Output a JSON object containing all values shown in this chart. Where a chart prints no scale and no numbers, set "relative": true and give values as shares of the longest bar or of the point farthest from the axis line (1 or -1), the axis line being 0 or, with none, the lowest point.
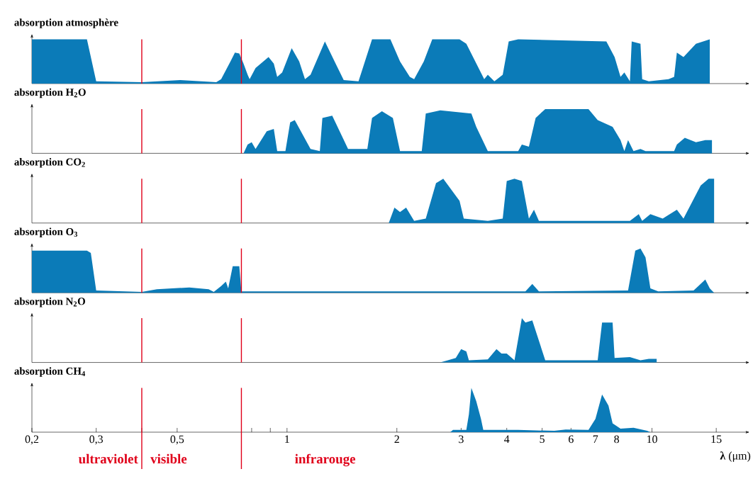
{
  "chart_data": [
    {
      "type": "area",
      "title": "absorption atmosphère",
      "log": "x",
      "xlim": [
        0.2,
        18.5
      ],
      "relative": true,
      "tick_labels": false,
      "color": "#0b7bb8",
      "x": [
        0.2,
        0.283,
        0.3,
        0.4,
        0.51,
        0.64,
        0.66,
        0.7,
        0.72,
        0.74,
        0.76,
        0.78,
        0.79,
        0.82,
        0.89,
        0.92,
        0.94,
        0.97,
        1.03,
        1.08,
        1.12,
        1.16,
        1.27,
        1.35,
        1.43,
        1.57,
        1.71,
        1.92,
        2.04,
        2.17,
        2.23,
        2.37,
        2.5,
        2.97,
        3.1,
        3.47,
        3.55,
        3.7,
        3.9,
        4.05,
        4.3,
        7.5,
        7.9,
        8.2,
        8.4,
        8.7,
        8.8,
        9.3,
        9.4,
        9.8,
        11.1,
        11.5,
        11.7,
        12.2,
        13.2,
        14.4
      ],
      "values": [
        1,
        1,
        0.05,
        0.03,
        0.08,
        0.03,
        0.1,
        0.5,
        0.7,
        0.68,
        0.45,
        0.2,
        0.1,
        0.35,
        0.6,
        0.45,
        0.15,
        0.25,
        0.8,
        0.5,
        0.1,
        0.2,
        0.95,
        0.5,
        0.08,
        0.05,
        1,
        1,
        0.5,
        0.15,
        0.1,
        0.5,
        1,
        1,
        0.9,
        0.1,
        0.2,
        0.05,
        0.2,
        0.95,
        1,
        0.95,
        0.6,
        0.15,
        0.25,
        0.05,
        0.95,
        0.9,
        0.1,
        0.05,
        0.1,
        0.15,
        0.7,
        0.6,
        0.9,
        1
      ],
      "ref_lines": [
        {
          "axis": "x",
          "value": 0.4,
          "color": "#e0001a"
        },
        {
          "axis": "x",
          "value": 0.75,
          "color": "#e0001a"
        }
      ]
    },
    {
      "type": "area",
      "title": "absorption H$_{2}$O",
      "log": "x",
      "xlim": [
        0.2,
        18.5
      ],
      "relative": true,
      "tick_labels": false,
      "color": "#0b7bb8",
      "x": [
        0.76,
        0.78,
        0.8,
        0.82,
        0.88,
        0.92,
        0.94,
        0.99,
        1.02,
        1.05,
        1.16,
        1.23,
        1.25,
        1.33,
        1.47,
        1.66,
        1.71,
        1.82,
        1.95,
        2.04,
        2.34,
        2.4,
        2.63,
        3.2,
        3.3,
        3.55,
        4.3,
        4.4,
        4.6,
        4.8,
        5.1,
        6.7,
        7.1,
        7.8,
        8.2,
        8.4,
        8.6,
        8.9,
        9.3,
        9.6,
        11.5,
        11.7,
        12.3,
        13.2,
        14.0,
        14.6
      ],
      "values": [
        0,
        0.2,
        0.25,
        0.1,
        0.5,
        0.55,
        0.05,
        0.05,
        0.7,
        0.75,
        0.1,
        0.05,
        0.8,
        0.85,
        0.1,
        0.1,
        0.8,
        0.95,
        0.8,
        0.05,
        0.05,
        0.9,
        0.97,
        0.9,
        0.6,
        0.05,
        0.05,
        0.2,
        0.15,
        0.8,
        1,
        1,
        0.75,
        0.6,
        0.3,
        0.05,
        0.3,
        0.05,
        0.1,
        0.05,
        0.05,
        0.2,
        0.35,
        0.25,
        0.3,
        0.3
      ],
      "ref_lines": [
        {
          "axis": "x",
          "value": 0.4,
          "color": "#e0001a"
        },
        {
          "axis": "x",
          "value": 0.75,
          "color": "#e0001a"
        }
      ]
    },
    {
      "type": "area",
      "title": "absorption CO$_{2}$",
      "log": "x",
      "xlim": [
        0.2,
        18.5
      ],
      "relative": true,
      "tick_labels": false,
      "color": "#0b7bb8",
      "x": [
        1.9,
        1.97,
        2.04,
        2.12,
        2.23,
        2.4,
        2.56,
        2.68,
        2.97,
        3.05,
        3.55,
        3.9,
        4.0,
        4.2,
        4.4,
        4.6,
        4.75,
        4.9,
        8.7,
        9.2,
        9.4,
        9.9,
        10.7,
        11.7,
        12.2,
        13.6,
        14.3,
        14.8
      ],
      "values": [
        0,
        0.35,
        0.25,
        0.35,
        0.05,
        0.1,
        0.9,
        1,
        0.5,
        0.1,
        0.05,
        0.1,
        0.95,
        1,
        0.95,
        0.1,
        0.3,
        0.05,
        0.05,
        0.2,
        0.05,
        0.2,
        0.1,
        0.3,
        0.1,
        0.85,
        1,
        1
      ],
      "ref_lines": [
        {
          "axis": "x",
          "value": 0.4,
          "color": "#e0001a"
        },
        {
          "axis": "x",
          "value": 0.75,
          "color": "#e0001a"
        }
      ]
    },
    {
      "type": "area",
      "title": "absorption O$_{3}$",
      "log": "x",
      "xlim": [
        0.2,
        18.5
      ],
      "relative": true,
      "tick_labels": false,
      "color": "#0b7bb8",
      "x": [
        0.2,
        0.283,
        0.29,
        0.3,
        0.4,
        0.44,
        0.54,
        0.61,
        0.63,
        0.66,
        0.68,
        0.69,
        0.71,
        0.74,
        0.75,
        4.5,
        4.7,
        4.9,
        8.6,
        9.0,
        9.3,
        9.6,
        9.9,
        10.4,
        13.0,
        13.4,
        14.0,
        14.4,
        14.8
      ],
      "values": [
        0.95,
        0.95,
        0.9,
        0.05,
        0.02,
        0.08,
        0.12,
        0.08,
        0.02,
        0.15,
        0.25,
        0.1,
        0.6,
        0.6,
        0.03,
        0.03,
        0.2,
        0.03,
        0.05,
        0.95,
        1,
        0.8,
        0.1,
        0.03,
        0.05,
        0.15,
        0.3,
        0.1,
        0
      ],
      "ref_lines": [
        {
          "axis": "x",
          "value": 0.4,
          "color": "#e0001a"
        },
        {
          "axis": "x",
          "value": 0.75,
          "color": "#e0001a"
        }
      ]
    },
    {
      "type": "area",
      "title": "absorption N$_{2}$O",
      "log": "x",
      "xlim": [
        0.2,
        18.5
      ],
      "relative": true,
      "tick_labels": false,
      "color": "#0b7bb8",
      "x": [
        2.63,
        2.9,
        3.0,
        3.1,
        3.15,
        3.55,
        3.75,
        3.87,
        4.0,
        4.2,
        4.4,
        4.5,
        4.7,
        5.1,
        7.1,
        7.3,
        7.8,
        7.9,
        8.7,
        9.3,
        9.8,
        10.3
      ],
      "values": [
        0,
        0.1,
        0.3,
        0.25,
        0.05,
        0.07,
        0.3,
        0.2,
        0.2,
        0.05,
        1,
        0.9,
        0.95,
        0.05,
        0.05,
        0.9,
        0.9,
        0.1,
        0.12,
        0.05,
        0.08,
        0.08
      ],
      "ref_lines": [
        {
          "axis": "x",
          "value": 0.4,
          "color": "#e0001a"
        },
        {
          "axis": "x",
          "value": 0.75,
          "color": "#e0001a"
        }
      ]
    },
    {
      "type": "area",
      "title": "absorption CH$_{4}$",
      "xlabel": "**λ** (μm)",
      "log": "x",
      "xlim": [
        0.2,
        18.5
      ],
      "relative": true,
      "tick_labels": "x",
      "color": "#0b7bb8",
      "xticks": [
        {
          "value": 0.2,
          "label": "0,2"
        },
        {
          "value": 0.3,
          "label": "0,3"
        },
        {
          "value": 0.4,
          "label": null
        },
        {
          "value": 0.5,
          "label": "0,5"
        },
        {
          "value": 0.8,
          "label": null
        },
        {
          "value": 0.9,
          "label": null
        },
        1,
        2,
        3,
        4,
        5,
        6,
        7,
        8,
        10,
        15
      ],
      "x": [
        2.8,
        2.85,
        3.1,
        3.15,
        3.2,
        3.3,
        3.4,
        3.45,
        4.3,
        5.4,
        5.8,
        6.7,
        7.0,
        7.3,
        7.6,
        7.8,
        8.2,
        8.9,
        9.7,
        9.9
      ],
      "values": [
        0,
        0.05,
        0.05,
        0.4,
        1,
        0.7,
        0.3,
        0.05,
        0.05,
        0.03,
        0.06,
        0.05,
        0.3,
        0.85,
        0.6,
        0.2,
        0.08,
        0.1,
        0.03,
        0
      ],
      "ref_lines": [
        {
          "axis": "x",
          "value": 0.4,
          "color": "#e0001a"
        },
        {
          "axis": "x",
          "value": 0.75,
          "color": "#e0001a"
        }
      ],
      "annotations": [
        "ultraviolet",
        "visible",
        "infrarouge"
      ]
    }
  ]
}
